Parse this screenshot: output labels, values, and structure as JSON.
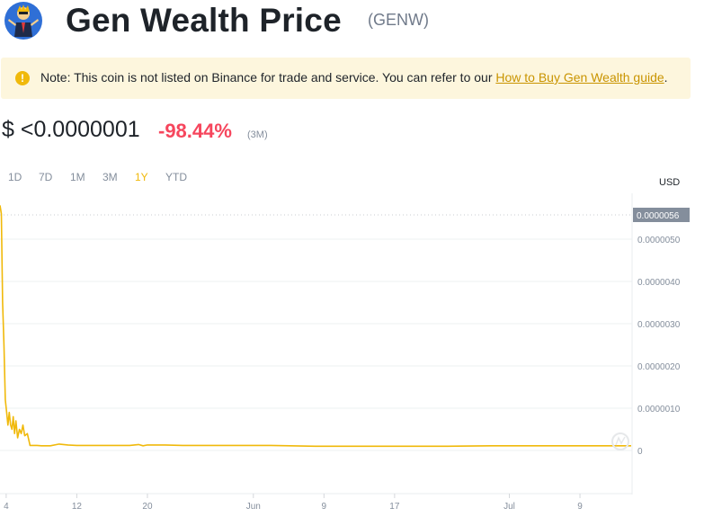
{
  "header": {
    "title": "Gen Wealth Price",
    "symbol": "(GENW)",
    "logo_icon": "gen-wealth-mascot-logo"
  },
  "note": {
    "icon": "exclamation-circle-icon",
    "text": "Note: This coin is not listed on Binance for trade and service. You can refer to our ",
    "link_text": "How to Buy Gen Wealth guide",
    "suffix": "."
  },
  "price": {
    "value": "$ <0.0000001",
    "change": "-98.44%",
    "period": "(3M)"
  },
  "ranges": [
    "1D",
    "7D",
    "1M",
    "3M",
    "1Y",
    "YTD"
  ],
  "active_range": "1Y",
  "currency": "USD",
  "colors": {
    "line": "#f0b90b",
    "negative": "#f6465d",
    "accent": "#f0b90b",
    "price_tag": "#848e9c",
    "note_bg": "#fdf6dd"
  },
  "chart_data": {
    "type": "line",
    "ylim": [
      0,
      5.6e-06
    ],
    "y_ticks": [
      {
        "value": 0,
        "label": "0"
      },
      {
        "value": 1e-06,
        "label": "0.0000010"
      },
      {
        "value": 2e-06,
        "label": "0.0000020"
      },
      {
        "value": 3e-06,
        "label": "0.0000030"
      },
      {
        "value": 4e-06,
        "label": "0.0000040"
      },
      {
        "value": 5e-06,
        "label": "0.0000050"
      }
    ],
    "current_price_label": "0.0000056",
    "x_ticks": [
      {
        "day": 0,
        "label": "4"
      },
      {
        "day": 8,
        "label": "12"
      },
      {
        "day": 16,
        "label": "20"
      },
      {
        "day": 28,
        "label": "Jun"
      },
      {
        "day": 36,
        "label": "9"
      },
      {
        "day": 44,
        "label": "17"
      },
      {
        "day": 57,
        "label": "Jul"
      },
      {
        "day": 65,
        "label": "9"
      }
    ],
    "x_range": [
      -0.7,
      70.8
    ],
    "series": [
      {
        "x": [
          -0.7,
          -0.55,
          -0.4,
          -0.25,
          -0.1,
          0.05,
          0.2,
          0.35,
          0.5,
          0.65,
          0.8,
          0.95,
          1.1,
          1.3,
          1.5,
          1.7,
          1.9,
          2.1,
          2.4,
          2.7,
          3,
          3.5,
          4,
          5,
          6,
          7,
          8,
          10,
          12,
          14,
          15,
          15.5,
          16,
          18,
          20,
          25,
          30,
          35,
          40,
          45,
          50,
          55,
          60,
          65,
          70,
          70.8
        ],
        "y": [
          5.8e-06,
          5.6e-06,
          3.5e-06,
          2.5e-06,
          1.2e-06,
          9e-07,
          6e-07,
          9e-07,
          6e-07,
          5e-07,
          8e-07,
          4e-07,
          7e-07,
          3e-07,
          5e-07,
          4e-07,
          6e-07,
          3.5e-07,
          4e-07,
          1.2e-07,
          1.2e-07,
          1.2e-07,
          1.1e-07,
          1.1e-07,
          1.5e-07,
          1.3e-07,
          1.2e-07,
          1.2e-07,
          1.2e-07,
          1.2e-07,
          1.4e-07,
          1.1e-07,
          1.3e-07,
          1.3e-07,
          1.2e-07,
          1.2e-07,
          1.2e-07,
          1e-07,
          1e-07,
          1e-07,
          1e-07,
          1.1e-07,
          1.1e-07,
          1.1e-07,
          1.1e-07,
          1.1e-07
        ]
      }
    ]
  }
}
